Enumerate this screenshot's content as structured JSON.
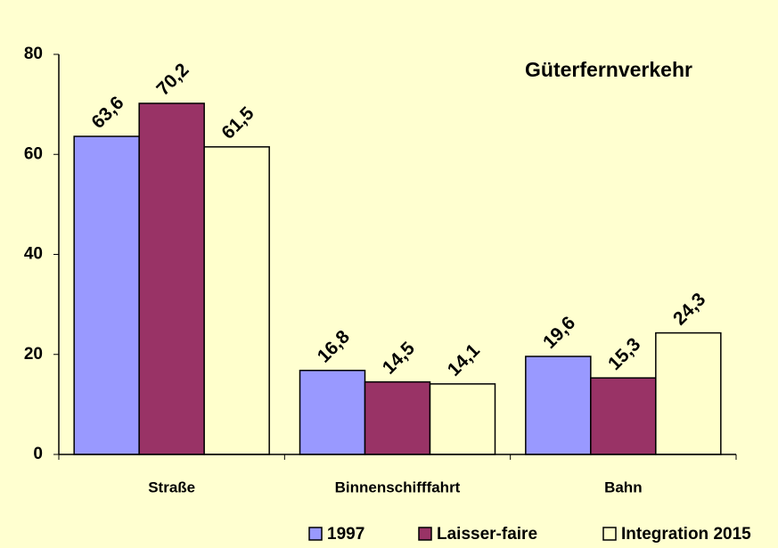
{
  "chart_data": {
    "type": "bar",
    "title": "Güterfernverkehr",
    "categories": [
      "Straße",
      "Binnenschifffahrt",
      "Bahn"
    ],
    "series": [
      {
        "name": "1997",
        "color": "#9999ff",
        "values": [
          63.6,
          16.8,
          19.6
        ],
        "value_labels": [
          "63,6",
          "16,8",
          "19,6"
        ]
      },
      {
        "name": "Laisser-faire",
        "color": "#993366",
        "values": [
          70.2,
          14.5,
          15.3
        ],
        "value_labels": [
          "70,2",
          "14,5",
          "15,3"
        ]
      },
      {
        "name": "Integration 2015",
        "color": "#ffffcc",
        "values": [
          61.5,
          14.1,
          24.3
        ],
        "value_labels": [
          "61,5",
          "14,1",
          "24,3"
        ]
      }
    ],
    "ylim": [
      0,
      80
    ],
    "yticks": [
      0,
      20,
      40,
      60,
      80
    ],
    "grid": false,
    "legend": "bottom"
  }
}
